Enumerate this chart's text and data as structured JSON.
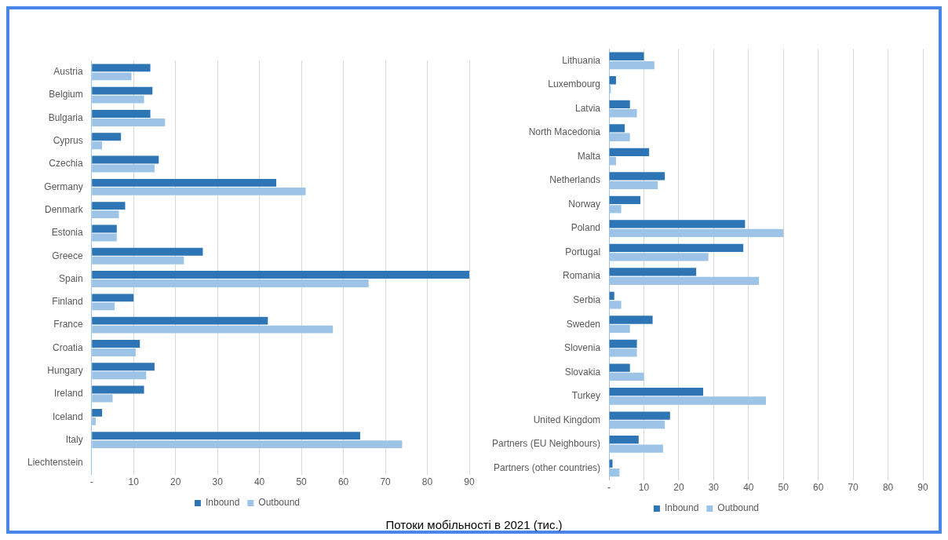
{
  "chart_data": [
    {
      "type": "bar",
      "orientation": "horizontal",
      "categories": [
        "Austria",
        "Belgium",
        "Bulgaria",
        "Cyprus",
        "Czechia",
        "Germany",
        "Denmark",
        "Estonia",
        "Greece",
        "Spain",
        "Finland",
        "France",
        "Croatia",
        "Hungary",
        "Ireland",
        "Iceland",
        "Italy",
        "Liechtenstein"
      ],
      "series": [
        {
          "name": "Inbound",
          "color": "#2e75b6",
          "values": [
            14,
            14.5,
            14,
            7,
            16,
            44,
            8,
            6,
            26.5,
            90,
            10,
            42,
            11.5,
            15,
            12.5,
            2.5,
            64,
            0
          ]
        },
        {
          "name": "Outbound",
          "color": "#9dc3e6",
          "values": [
            9.5,
            12.5,
            17.5,
            2.5,
            15,
            51,
            6.5,
            6,
            22,
            66,
            5.5,
            57.5,
            10.5,
            13,
            5,
            1,
            74,
            0
          ]
        }
      ],
      "xlim": [
        0,
        90
      ],
      "xticks": [
        {
          "value": 0,
          "label": "-"
        },
        10,
        20,
        30,
        40,
        50,
        60,
        70,
        80,
        90
      ],
      "grid": "x",
      "legend": "bottom",
      "annotations": [
        "Потоки мобільності в 2021 (тис.)"
      ]
    },
    {
      "type": "bar",
      "orientation": "horizontal",
      "categories": [
        "Lithuania",
        "Luxembourg",
        "Latvia",
        "North Macedonia",
        "Malta",
        "Netherlands",
        "Norway",
        "Poland",
        "Portugal",
        "Romania",
        "Serbia",
        "Sweden",
        "Slovenia",
        "Slovakia",
        "Turkey",
        "United Kingdom",
        "Partners (EU Neighbours)",
        "Partners (other countries)"
      ],
      "series": [
        {
          "name": "Inbound",
          "color": "#2e75b6",
          "values": [
            10,
            2,
            6,
            4.5,
            11.5,
            16,
            9,
            39,
            38.5,
            25,
            1.5,
            12.5,
            8,
            6,
            27,
            17.5,
            8.5,
            1
          ]
        },
        {
          "name": "Outbound",
          "color": "#9dc3e6",
          "values": [
            13,
            0.5,
            8,
            6,
            2,
            14,
            3.5,
            50,
            28.5,
            43,
            3.5,
            6,
            8,
            10,
            45,
            16,
            15.5,
            3
          ]
        }
      ],
      "xlim": [
        0,
        90
      ],
      "xticks": [
        {
          "value": 0,
          "label": "-"
        },
        10,
        20,
        30,
        40,
        50,
        60,
        70,
        80,
        90
      ],
      "grid": "x",
      "legend": "bottom"
    }
  ]
}
